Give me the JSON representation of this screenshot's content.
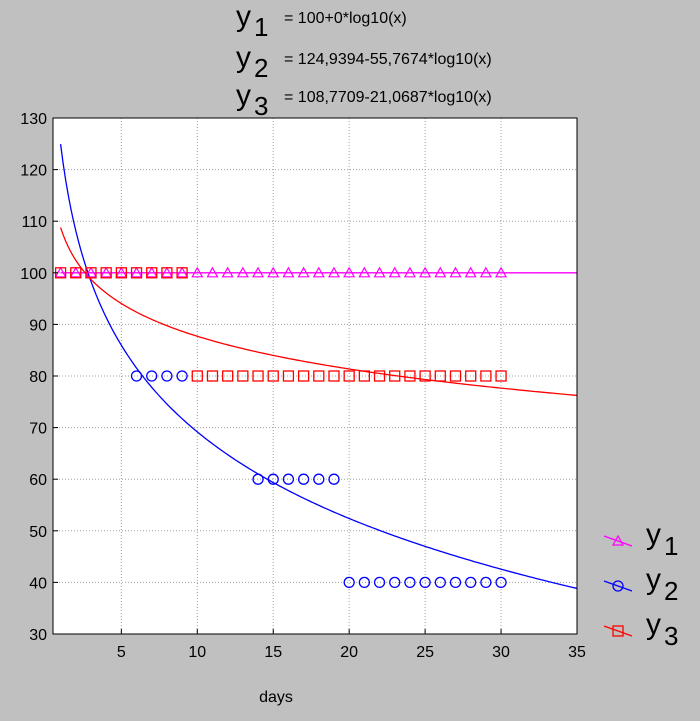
{
  "chart_data": {
    "type": "scatter",
    "xlabel": "days",
    "ylabel": "",
    "xlim": [
      0.5,
      35
    ],
    "ylim": [
      30,
      130
    ],
    "xticks": [
      5,
      10,
      15,
      20,
      25,
      30,
      35
    ],
    "yticks": [
      30,
      40,
      50,
      60,
      70,
      80,
      90,
      100,
      110,
      120,
      130
    ],
    "grid": true,
    "legend_position": "bottom-right",
    "background_color": "#c0c0c0",
    "plot_background_color": "#ffffff",
    "equations": [
      {
        "var": "y",
        "sub": "1",
        "text": "= 100+0*log10(x)"
      },
      {
        "var": "y",
        "sub": "2",
        "text": "= 124,9394-55,7674*log10(x)"
      },
      {
        "var": "y",
        "sub": "3",
        "text": "= 108,7709-21,0687*log10(x)"
      }
    ],
    "series": [
      {
        "name": "y",
        "sub": "1",
        "color": "#ff00ff",
        "marker": "triangle",
        "fit": {
          "a": 100,
          "b": 0,
          "x_start": 1,
          "x_end": 35
        },
        "x": [
          1,
          2,
          3,
          4,
          5,
          6,
          7,
          8,
          9,
          10,
          11,
          12,
          13,
          14,
          15,
          16,
          17,
          18,
          19,
          20,
          21,
          22,
          23,
          24,
          25,
          26,
          27,
          28,
          29,
          30
        ],
        "y": [
          100,
          100,
          100,
          100,
          100,
          100,
          100,
          100,
          100,
          100,
          100,
          100,
          100,
          100,
          100,
          100,
          100,
          100,
          100,
          100,
          100,
          100,
          100,
          100,
          100,
          100,
          100,
          100,
          100,
          100
        ]
      },
      {
        "name": "y",
        "sub": "2",
        "color": "#0000ff",
        "marker": "circle",
        "fit": {
          "a": 124.9394,
          "b": -55.7674,
          "x_start": 1,
          "x_end": 35
        },
        "x": [
          6,
          7,
          8,
          9,
          14,
          15,
          16,
          17,
          18,
          19,
          20,
          21,
          22,
          23,
          24,
          25,
          26,
          27,
          28,
          29,
          30
        ],
        "y": [
          80,
          80,
          80,
          80,
          60,
          60,
          60,
          60,
          60,
          60,
          40,
          40,
          40,
          40,
          40,
          40,
          40,
          40,
          40,
          40,
          40
        ]
      },
      {
        "name": "y",
        "sub": "3",
        "color": "#ff0000",
        "marker": "square",
        "fit": {
          "a": 108.7709,
          "b": -21.0687,
          "x_start": 1,
          "x_end": 35
        },
        "x": [
          1,
          2,
          3,
          4,
          5,
          6,
          7,
          8,
          9,
          10,
          11,
          12,
          13,
          14,
          15,
          16,
          17,
          18,
          19,
          20,
          21,
          22,
          23,
          24,
          25,
          26,
          27,
          28,
          29,
          30
        ],
        "y": [
          100,
          100,
          100,
          100,
          100,
          100,
          100,
          100,
          100,
          80,
          80,
          80,
          80,
          80,
          80,
          80,
          80,
          80,
          80,
          80,
          80,
          80,
          80,
          80,
          80,
          80,
          80,
          80,
          80,
          80
        ]
      }
    ]
  }
}
